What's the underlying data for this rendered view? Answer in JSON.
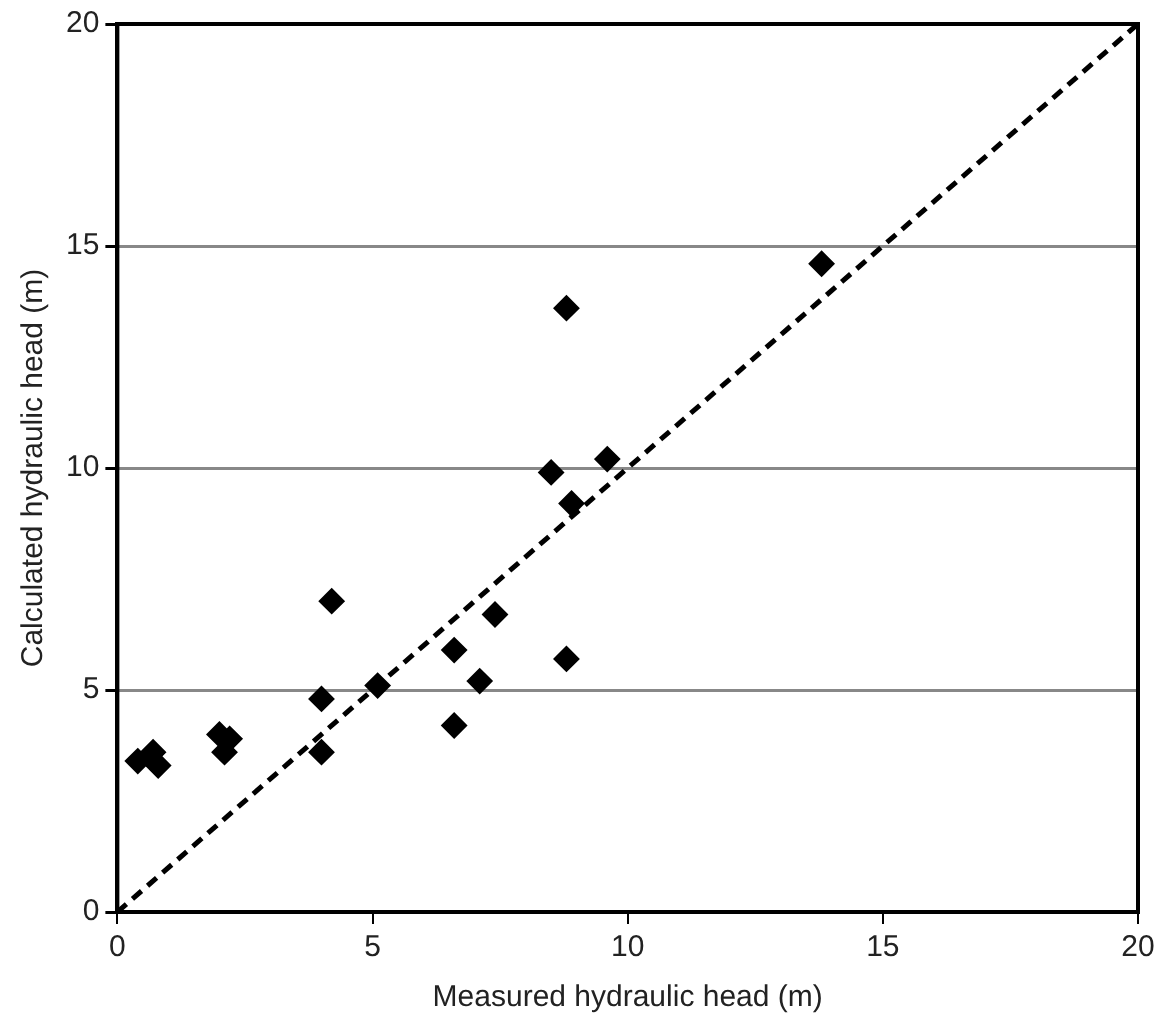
{
  "chart_data": {
    "type": "scatter",
    "xlabel": "Measured hydraulic head (m)",
    "ylabel": "Calculated hydraulic head (m)",
    "xlim": [
      0,
      20
    ],
    "xticks": [
      0,
      5,
      10,
      15,
      20
    ],
    "ylim": [
      0,
      20
    ],
    "yticks": [
      0,
      5,
      10,
      15,
      20
    ],
    "grid": "y",
    "legend": false,
    "series": [
      {
        "type": "scatter",
        "color": "#000000",
        "marker": "diamond",
        "x": [
          0.4,
          0.7,
          0.8,
          1.9,
          2.0,
          2.1,
          2.2,
          4.0,
          4.0,
          4.2,
          5.1,
          6.6,
          6.6,
          7.1,
          7.4,
          8.5,
          8.8,
          8.9,
          9.6,
          8.8,
          13.8
        ],
        "values": [
          3.4,
          3.6,
          3.3,
          null,
          4.0,
          3.6,
          3.9,
          4.8,
          3.6,
          7.0,
          5.1,
          5.9,
          4.2,
          5.2,
          6.7,
          9.9,
          5.7,
          9.2,
          10.2,
          13.6,
          14.6
        ]
      },
      {
        "type": "line",
        "color": "#000000",
        "marker": "none",
        "line_style": "dashed",
        "x": [
          0,
          20
        ],
        "values": [
          0,
          20
        ]
      }
    ]
  }
}
